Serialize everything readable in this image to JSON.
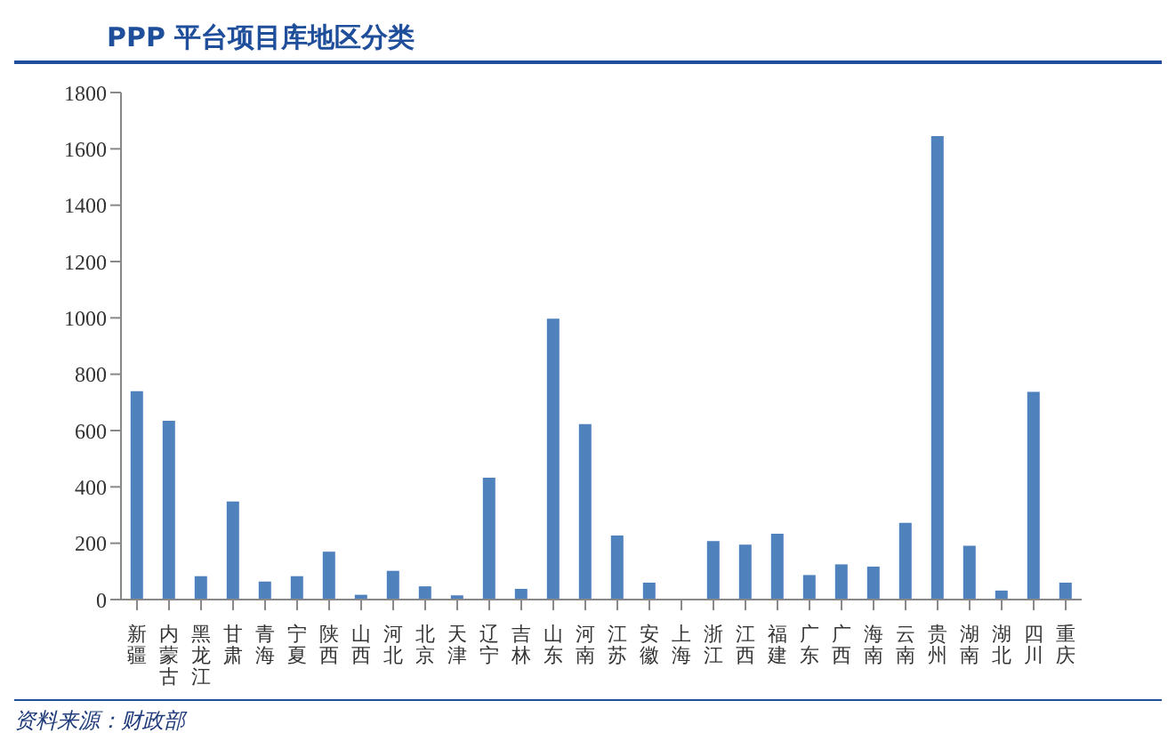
{
  "chart_data": {
    "type": "bar",
    "title": "PPP 平台项目库地区分类",
    "categories": [
      "新疆",
      "内蒙古",
      "黑龙江",
      "甘肃",
      "青海",
      "宁夏",
      "陕西",
      "山西",
      "河北",
      "北京",
      "天津",
      "辽宁",
      "吉林",
      "山东",
      "河南",
      "江苏",
      "安徽",
      "上海",
      "浙江",
      "江西",
      "福建",
      "广东",
      "广西",
      "海南",
      "云南",
      "贵州",
      "湖南",
      "湖北",
      "四川",
      "重庆"
    ],
    "values": [
      740,
      635,
      83,
      348,
      64,
      83,
      170,
      17,
      102,
      47,
      15,
      433,
      38,
      997,
      623,
      227,
      60,
      0,
      208,
      195,
      234,
      87,
      125,
      117,
      272,
      1645,
      191,
      32,
      737,
      60
    ],
    "color": "#4f81bd",
    "ylim": [
      0,
      1800
    ],
    "yticks": [
      0,
      200,
      400,
      600,
      800,
      1000,
      1200,
      1400,
      1600,
      1800
    ],
    "grid": false,
    "legend": false,
    "annotations": [
      "资料来源：财政部"
    ]
  }
}
